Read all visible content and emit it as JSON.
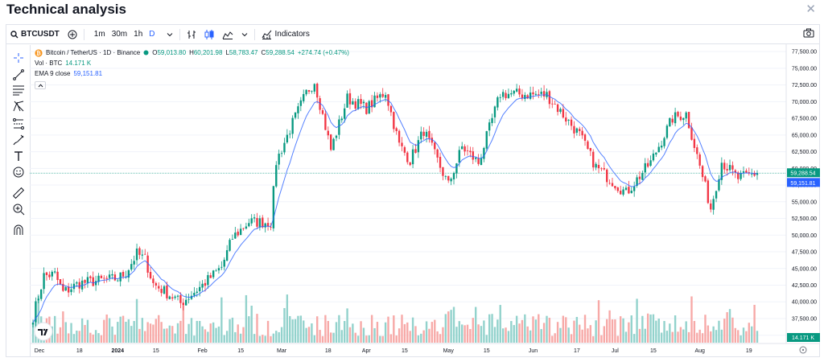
{
  "window": {
    "title": "Technical analysis",
    "close_icon": "close-icon"
  },
  "toolbar": {
    "symbol": "BTCUSDT",
    "intervals": [
      "1m",
      "30m",
      "1h",
      "D"
    ],
    "active_interval": "D",
    "indicators_label": "Indicators"
  },
  "legend": {
    "pair": "Bitcoin / TetherUS · 1D · Binance",
    "o_label": "O",
    "o_value": "59,013.80",
    "h_label": "H",
    "h_value": "60,201.98",
    "l_label": "L",
    "l_value": "58,783.47",
    "c_label": "C",
    "c_value": "59,288.54",
    "change": "+274.74 (+0.47%)",
    "vol_label": "Vol · BTC",
    "vol_value": "14.171 K",
    "ema_label": "EMA 9 close",
    "ema_value": "59,151.81"
  },
  "price_axis": {
    "ticks": [
      "77,500.00",
      "75,000.00",
      "72,500.00",
      "70,000.00",
      "67,500.00",
      "65,000.00",
      "62,500.00",
      "60,000.00",
      "57,500.00",
      "55,000.00",
      "52,500.00",
      "50,000.00",
      "47,500.00",
      "45,000.00",
      "42,500.00",
      "40,000.00",
      "37,500.00",
      "35,000.00"
    ],
    "last_price": "59,288.54",
    "ema_price": "59,151.81",
    "vol_tag": "14.171 K"
  },
  "time_axis": {
    "labels": [
      "Dec",
      "18",
      "2024",
      "15",
      "Feb",
      "15",
      "Mar",
      "18",
      "Apr",
      "15",
      "May",
      "15",
      "Jun",
      "17",
      "Jul",
      "15",
      "Aug",
      "19"
    ]
  },
  "colors": {
    "up": "#089981",
    "down": "#f23645",
    "ema": "#2962ff",
    "vol_up": "#92d2cc",
    "vol_down": "#f7a9a7"
  },
  "chart_data": {
    "type": "candlestick",
    "symbol": "BTCUSDT",
    "interval": "1D",
    "ylim": [
      34000,
      78000
    ],
    "anchors": [
      [
        "Dec 1",
        37800
      ],
      [
        "Dec 5",
        43900
      ],
      [
        "Dec 9",
        44100
      ],
      [
        "Dec 12",
        41400
      ],
      [
        "Dec 18",
        42800
      ],
      [
        "Jan 1",
        43500
      ],
      [
        "Jan 4",
        44400
      ],
      [
        "Jan 8",
        47200
      ],
      [
        "Jan 11",
        46400
      ],
      [
        "Jan 14",
        42700
      ],
      [
        "Jan 22",
        40500
      ],
      [
        "Jan 24",
        39800
      ],
      [
        "Feb 1",
        42500
      ],
      [
        "Feb 8",
        45200
      ],
      [
        "Feb 12",
        49600
      ],
      [
        "Feb 18",
        52000
      ],
      [
        "Feb 26",
        51900
      ],
      [
        "Feb 28",
        61000
      ],
      [
        "Mar 5",
        66800
      ],
      [
        "Mar 10",
        71300
      ],
      [
        "Mar 13",
        73100
      ],
      [
        "Mar 19",
        62800
      ],
      [
        "Mar 25",
        70500
      ],
      [
        "Apr 1",
        69000
      ],
      [
        "Apr 8",
        71500
      ],
      [
        "Apr 13",
        63500
      ],
      [
        "Apr 17",
        61200
      ],
      [
        "Apr 22",
        65700
      ],
      [
        "May 1",
        57500
      ],
      [
        "May 6",
        63200
      ],
      [
        "May 12",
        60800
      ],
      [
        "May 20",
        71200
      ],
      [
        "Jun 6",
        71000
      ],
      [
        "Jun 18",
        65000
      ],
      [
        "Jun 24",
        60200
      ],
      [
        "Jul 5",
        56300
      ],
      [
        "Jul 14",
        60900
      ],
      [
        "Jul 22",
        67500
      ],
      [
        "Jul 27",
        68200
      ],
      [
        "Aug 5",
        54000
      ],
      [
        "Aug 9",
        61000
      ],
      [
        "Aug 15",
        58500
      ],
      [
        "Aug 22",
        59288.54
      ]
    ],
    "ema_period": 9,
    "last_close": 59288.54,
    "last_ema": 59151.81
  }
}
